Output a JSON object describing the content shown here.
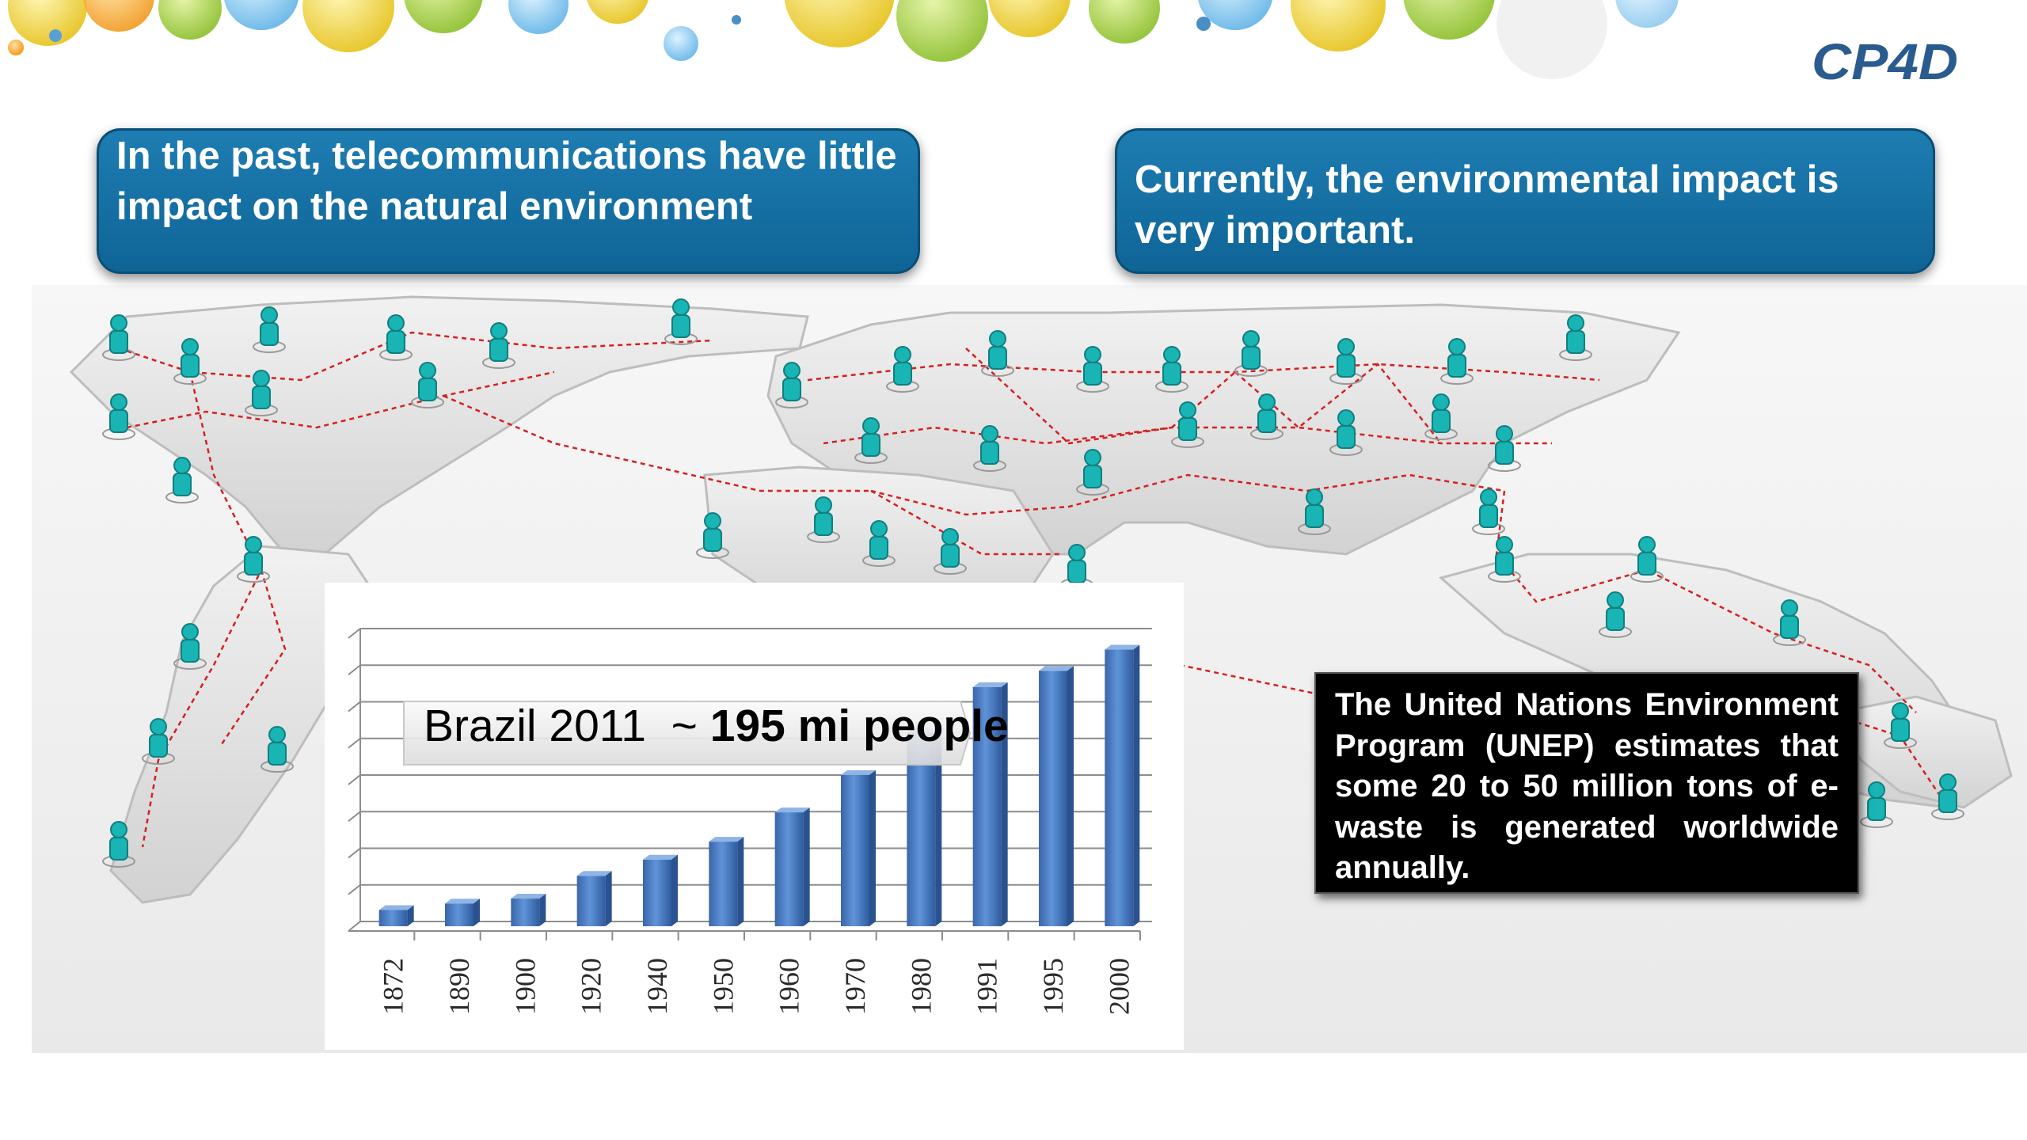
{
  "logo": {
    "text": "CP4D"
  },
  "callouts": {
    "past": "In the past, telecommunications have little impact on the natural environment",
    "current": "Currently, the environmental  impact is very important."
  },
  "info_box": {
    "text": "The United Nations Environment Program (UNEP) estimates that some 20 to 50 million tons of e-waste is generated worldwide annually."
  },
  "chart_data": {
    "type": "bar",
    "categories": [
      "1872",
      "1890",
      "1900",
      "1920",
      "1940",
      "1950",
      "1960",
      "1970",
      "1980",
      "1991",
      "1995",
      "2000"
    ],
    "values": [
      10,
      14,
      17,
      31,
      41,
      52,
      70,
      93,
      119,
      147,
      157,
      170
    ],
    "title_prefix": "Brazil 2011  ~ ",
    "title_emphasis": "195 mi people",
    "ylim": [
      0,
      180
    ],
    "grid": true,
    "bar_color": "#4a7bc4"
  },
  "colors": {
    "callout_blue": "#1673a8",
    "figure_teal": "#19b4b4",
    "network_line": "#d42020",
    "bar_blue": "#4a7bc4"
  }
}
